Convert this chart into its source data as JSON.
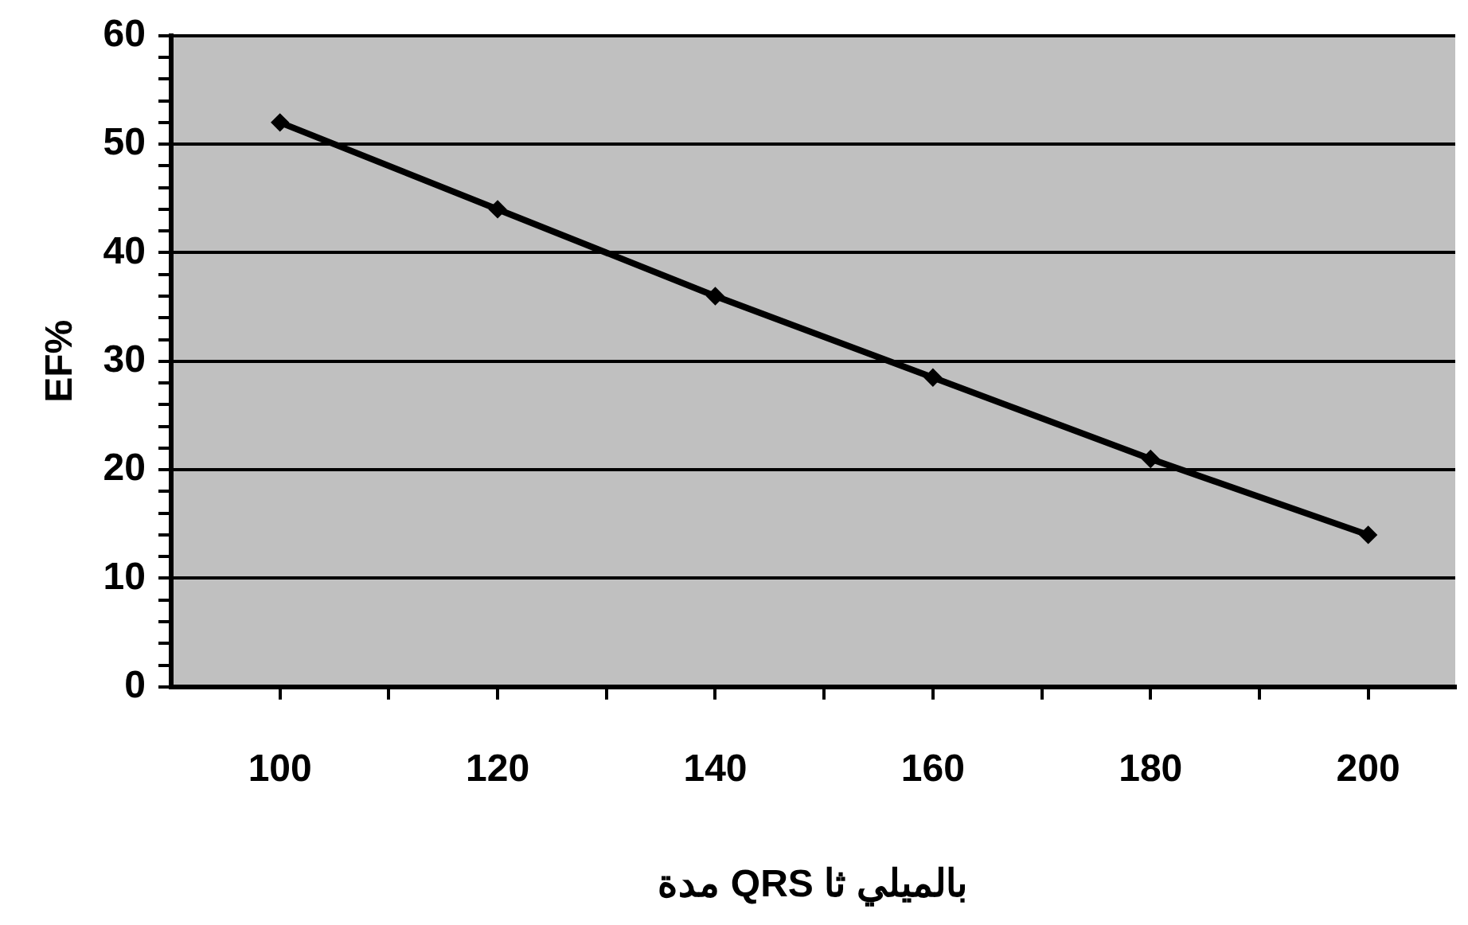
{
  "chart_data": {
    "type": "line",
    "xlabel": "مدة QRS بالميلي ثا",
    "ylabel": "EF%",
    "x": [
      100,
      120,
      140,
      160,
      180,
      200
    ],
    "series": [
      {
        "color": "#000000",
        "values": [
          52,
          44,
          36,
          28.5,
          21,
          14
        ]
      }
    ],
    "xlim": [
      90,
      208
    ],
    "xticks": [
      100,
      {
        "value": 110,
        "label": null
      },
      120,
      {
        "value": 130,
        "label": null
      },
      140,
      {
        "value": 150,
        "label": null
      },
      160,
      {
        "value": 170,
        "label": null
      },
      180,
      {
        "value": 190,
        "label": null
      },
      200
    ],
    "ylim": [
      0,
      60
    ],
    "yticks": [
      0,
      {
        "value": 2,
        "label": null
      },
      {
        "value": 4,
        "label": null
      },
      {
        "value": 6,
        "label": null
      },
      {
        "value": 8,
        "label": null
      },
      10,
      {
        "value": 12,
        "label": null
      },
      {
        "value": 14,
        "label": null
      },
      {
        "value": 16,
        "label": null
      },
      {
        "value": 18,
        "label": null
      },
      20,
      {
        "value": 22,
        "label": null
      },
      {
        "value": 24,
        "label": null
      },
      {
        "value": 26,
        "label": null
      },
      {
        "value": 28,
        "label": null
      },
      30,
      {
        "value": 32,
        "label": null
      },
      {
        "value": 34,
        "label": null
      },
      {
        "value": 36,
        "label": null
      },
      {
        "value": 38,
        "label": null
      },
      40,
      {
        "value": 42,
        "label": null
      },
      {
        "value": 44,
        "label": null
      },
      {
        "value": 46,
        "label": null
      },
      {
        "value": 48,
        "label": null
      },
      50,
      {
        "value": 52,
        "label": null
      },
      {
        "value": 54,
        "label": null
      },
      {
        "value": 56,
        "label": null
      },
      {
        "value": 58,
        "label": null
      },
      60
    ],
    "grid": "y",
    "marker": "diamond",
    "line_style": "solid"
  }
}
